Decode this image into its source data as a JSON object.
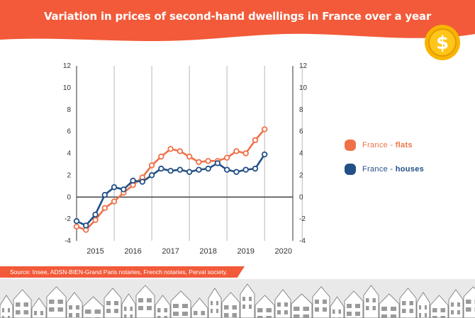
{
  "header": {
    "title": "Variation in prices of second-hand dwellings in France over a year",
    "coin_symbol": "$"
  },
  "colors": {
    "banner": "#f25a3a",
    "flats": "#f07048",
    "houses": "#224f86",
    "coin": "#f7b500"
  },
  "legend": {
    "flats_prefix": "France - ",
    "flats_suffix": "flats",
    "houses_prefix": "France - ",
    "houses_suffix": "houses"
  },
  "source": "Source: Insee, ADSN-BIEN-Grand Paris notaries, French notaries, Perval society.",
  "chart_data": {
    "type": "line",
    "x_ticks": [
      "2015",
      "2016",
      "2017",
      "2018",
      "2019",
      "2020"
    ],
    "x_tick_values": [
      2015,
      2016,
      2017,
      2018,
      2019,
      2020
    ],
    "xlim": [
      2014.5,
      2020.25
    ],
    "y_ticks": [
      "12",
      "10",
      "8",
      "6",
      "4",
      "2",
      "0",
      "-2",
      "-4"
    ],
    "ylim": [
      -4,
      12
    ],
    "right_axis": true,
    "zero_line": true,
    "grid": "vertical",
    "legend_position": "right",
    "series": [
      {
        "name": "France - flats",
        "color_key": "flats",
        "x": [
          2014.5,
          2014.75,
          2015.0,
          2015.25,
          2015.5,
          2015.75,
          2016.0,
          2016.25,
          2016.5,
          2016.75,
          2017.0,
          2017.25,
          2017.5,
          2017.75,
          2018.0,
          2018.25,
          2018.5,
          2018.75,
          2019.0,
          2019.25,
          2019.5,
          2019.75
        ],
        "values": [
          -2.7,
          -3.0,
          -2.1,
          -1.0,
          -0.4,
          0.4,
          1.1,
          1.8,
          2.9,
          3.7,
          4.4,
          4.2,
          3.7,
          3.2,
          3.3,
          3.3,
          3.6,
          4.2,
          4.0,
          5.2,
          6.2,
          null
        ]
      },
      {
        "name": "France - houses",
        "color_key": "houses",
        "x": [
          2014.5,
          2014.75,
          2015.0,
          2015.25,
          2015.5,
          2015.75,
          2016.0,
          2016.25,
          2016.5,
          2016.75,
          2017.0,
          2017.25,
          2017.5,
          2017.75,
          2018.0,
          2018.25,
          2018.5,
          2018.75,
          2019.0,
          2019.25,
          2019.5,
          2019.75
        ],
        "values": [
          -2.2,
          -2.6,
          -1.6,
          0.2,
          0.9,
          0.7,
          1.5,
          1.4,
          2.0,
          2.6,
          2.4,
          2.5,
          2.3,
          2.5,
          2.6,
          3.1,
          2.5,
          2.3,
          2.5,
          2.6,
          3.9,
          null
        ]
      }
    ]
  }
}
